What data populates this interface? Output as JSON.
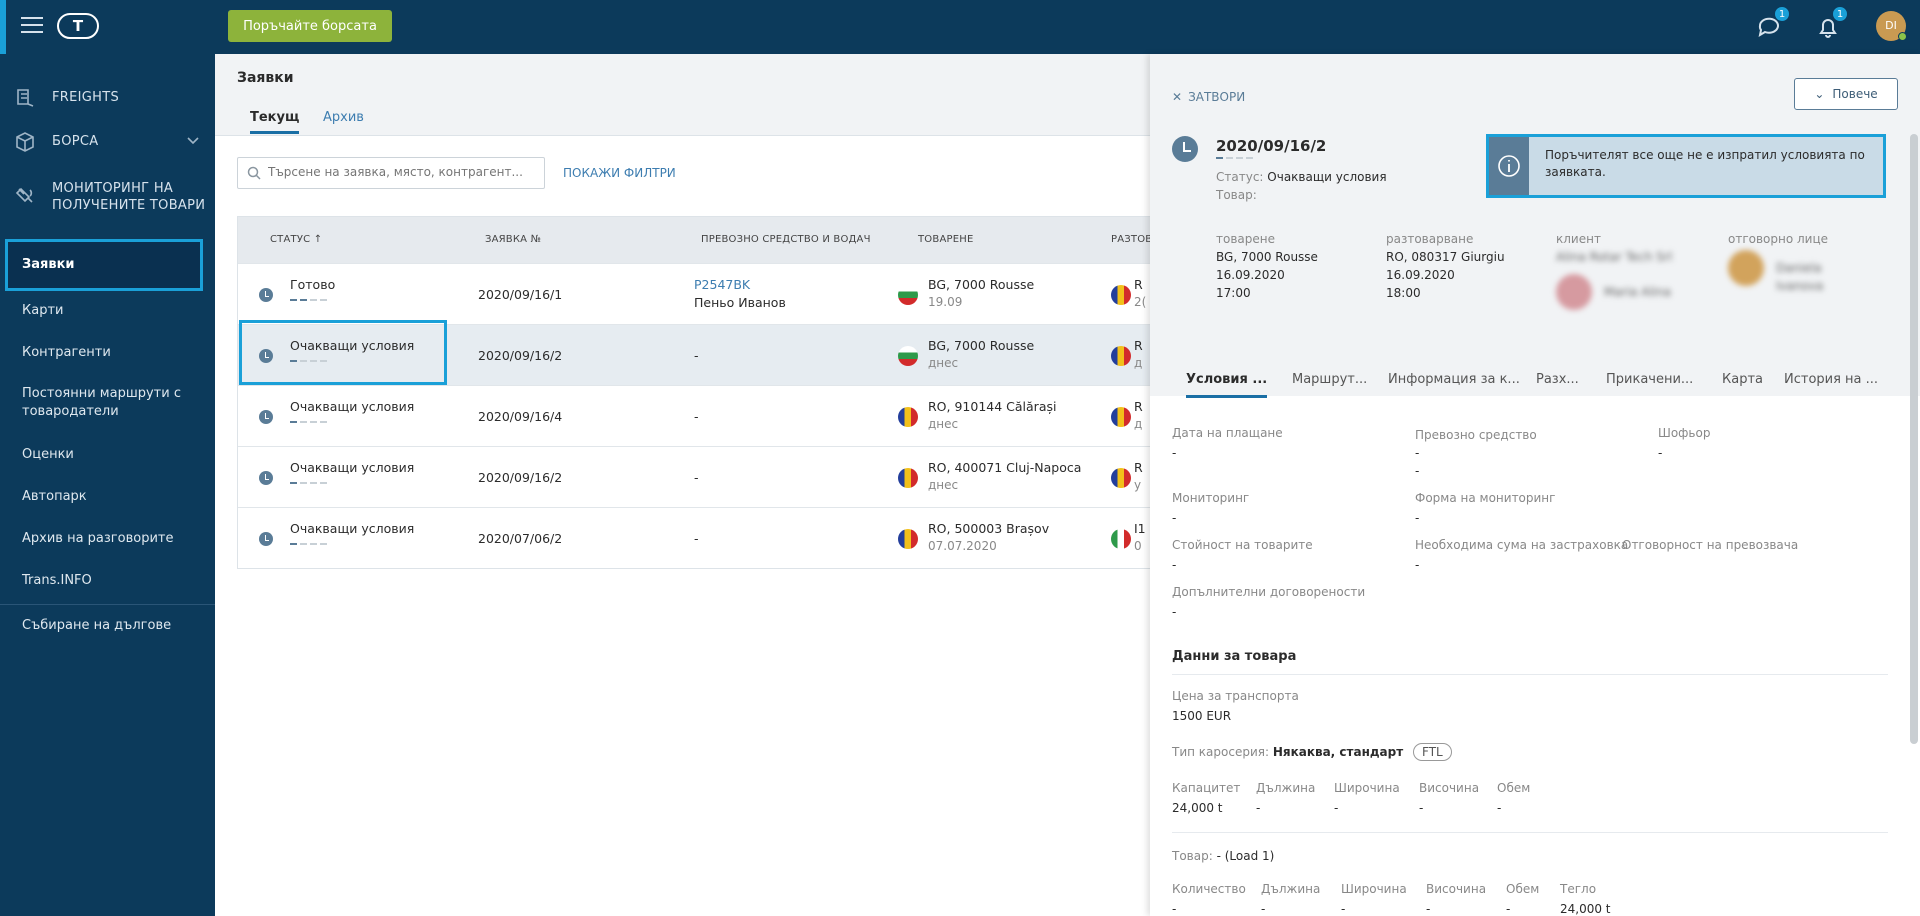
{
  "topbar": {
    "cta": "Поръчайте борсата",
    "messages_badge": "1",
    "notifications_badge": "1",
    "avatar_initials": "DI"
  },
  "sidebar": {
    "freights": "FREIGHTS",
    "exchange": "БОРСА",
    "monitoring": "МОНИТОРИНГ НА ПОЛУЧЕНИТЕ ТОВАРИ",
    "items": [
      "Заявки",
      "Карти",
      "Контрагенти",
      "Постоянни маршрути с товародатели",
      "Оценки",
      "Автопарк",
      "Архив на разговорите",
      "Trans.INFO",
      "Събиране на дългове"
    ]
  },
  "main": {
    "title": "Заявки",
    "tabs": [
      "Текущ",
      "Архив"
    ],
    "search_placeholder": "Търсене на заявка, място, контрагент...",
    "show_filters": "ПОКАЖИ ФИЛТРИ",
    "columns": [
      "СТАТУС ↑",
      "ЗАЯВКА №",
      "ПРЕВОЗНО СРЕДСТВО И ВОДАЧ",
      "ТОВАРЕНЕ",
      "РАЗТОВ"
    ],
    "rows": [
      {
        "status": "Готово",
        "steps": 2,
        "order": "2020/09/16/1",
        "vehicle": "P2547BK",
        "driver": "Пеньо Иванов",
        "flag": "bg",
        "loading": "BG, 7000 Rousse",
        "loading_date": "19.09",
        "unload_flag": "ro",
        "unload": "R",
        "unload_sub": "2("
      },
      {
        "status": "Очакващи условия",
        "steps": 1,
        "order": "2020/09/16/2",
        "vehicle": "",
        "driver": "-",
        "flag": "bg",
        "loading": "BG, 7000 Rousse",
        "loading_date": "днес",
        "unload_flag": "ro",
        "unload": "R",
        "unload_sub": "д"
      },
      {
        "status": "Очакващи условия",
        "steps": 1,
        "order": "2020/09/16/4",
        "vehicle": "",
        "driver": "-",
        "flag": "ro",
        "loading": "RO, 910144 Călărași",
        "loading_date": "днес",
        "unload_flag": "ro",
        "unload": "R",
        "unload_sub": "д"
      },
      {
        "status": "Очакващи условия",
        "steps": 1,
        "order": "2020/09/16/2",
        "vehicle": "",
        "driver": "-",
        "flag": "ro",
        "loading": "RO, 400071 Cluj-Napoca",
        "loading_date": "днес",
        "unload_flag": "ro",
        "unload": "R",
        "unload_sub": "у"
      },
      {
        "status": "Очакващи условия",
        "steps": 1,
        "order": "2020/07/06/2",
        "vehicle": "",
        "driver": "-",
        "flag": "ro",
        "loading": "RO, 500003 Brașov",
        "loading_date": "07.07.2020",
        "unload_flag": "it",
        "unload": "I1",
        "unload_sub": "0"
      }
    ]
  },
  "panel": {
    "close": "ЗАТВОРИ",
    "more": "Повече",
    "order": "2020/09/16/2",
    "status_label": "Статус:",
    "status_value": "Очакващи условия",
    "goods_label": "Товар:",
    "info": "Поръчителят все още не е изпратил условията по заявката.",
    "loading_label": "товарене",
    "loading_place": "BG, 7000 Rousse",
    "loading_date": "16.09.2020",
    "loading_time": "17:00",
    "unloading_label": "разтоварване",
    "unloading_place": "RO, 080317 Giurgiu",
    "unloading_date": "16.09.2020",
    "unloading_time": "18:00",
    "client_label": "клиент",
    "client_name": "Alina Rotar Tech Srl",
    "client_person": "Maria Alina",
    "responsible_label": "отговорно лице",
    "responsible_name": "Daniela Ivanova",
    "tabs": [
      "Условия ...",
      "Маршрут...",
      "Информация за к...",
      "Разх...",
      "Прикачени...",
      "Карта",
      "История на ..."
    ],
    "fields": {
      "payment_date": "Дата на плащане",
      "vehicle": "Превозно средство",
      "driver": "Шофьор",
      "monitoring": "Мониторинг",
      "monitoring_form": "Форма на мониторинг",
      "goods_value": "Стойност на товарите",
      "insurance_sum": "Необходима сума на застраховка",
      "carrier_liability": "Отговорност на превозвача",
      "extra_agreements": "Допълнителни договорености",
      "dash": "-"
    },
    "goods_section": "Данни за товара",
    "price_label": "Цена за транспорта",
    "price_value": "1500 EUR",
    "body_type_label": "Тип каросерия:",
    "body_type_value": "Някаква, стандарт",
    "ftl": "FTL",
    "dims": {
      "capacity": "Капацитет",
      "length": "Дължина",
      "width": "Широчина",
      "height": "Височина",
      "volume": "Обем",
      "capacity_value": "24,000 t"
    },
    "load_label": "Товар:",
    "load_value": "- (Load 1)",
    "load_cols": {
      "qty": "Количество",
      "length": "Дължина",
      "width": "Широчина",
      "height": "Височина",
      "volume": "Обем",
      "weight": "Тегло",
      "weight_value": "24,000 t"
    }
  }
}
